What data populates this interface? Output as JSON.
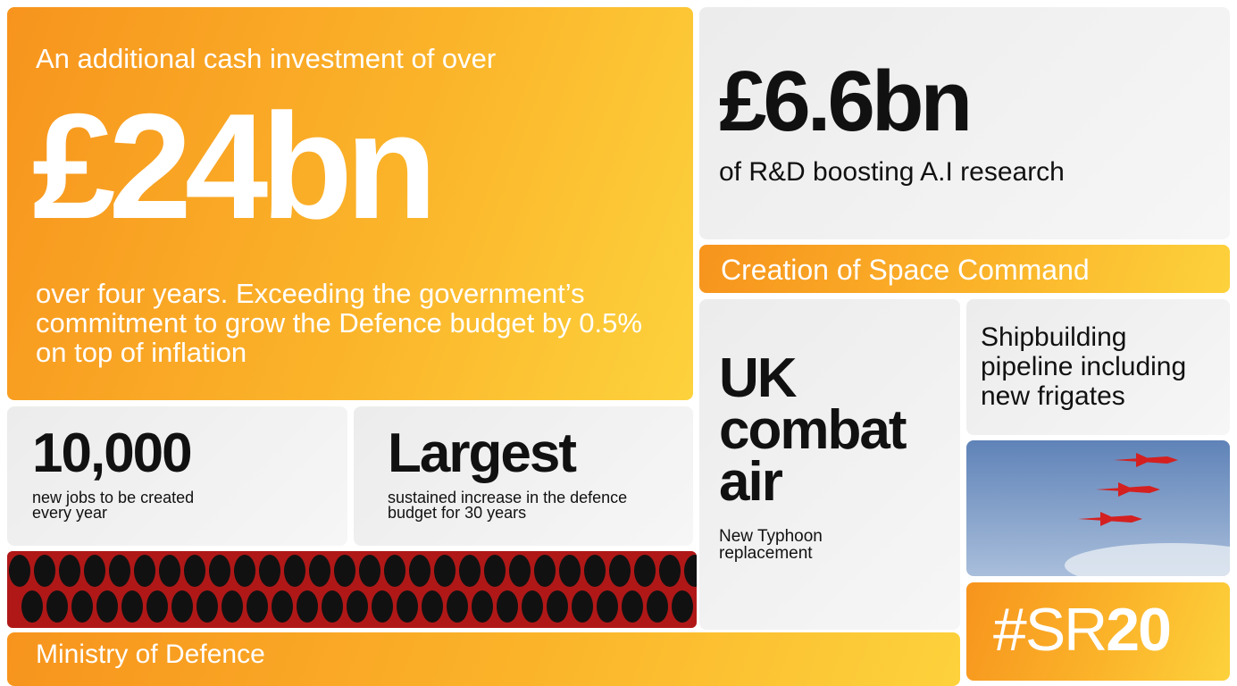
{
  "main": {
    "intro": "An additional cash investment of over",
    "figure": "£24bn",
    "body": "over four years. Exceeding the government’s commitment to grow the Defence budget by 0.5% on top of inflation"
  },
  "rd": {
    "figure": "£6.6bn",
    "text": "of R&D boosting A.I research"
  },
  "space": "Creation of Space Command",
  "jobs": {
    "figure": "10,000",
    "text": "new jobs to be created every year"
  },
  "largest": {
    "figure": "Largest",
    "text": "sustained increase in the defence budget for 30 years"
  },
  "combat": {
    "figure": "UK combat air",
    "text": "New Typhoon replacement"
  },
  "ship": "Shipbuilding pipeline including new frigates",
  "hashtag": {
    "prefix": "#SR",
    "suffix": "20"
  },
  "footer": "Ministry of Defence"
}
